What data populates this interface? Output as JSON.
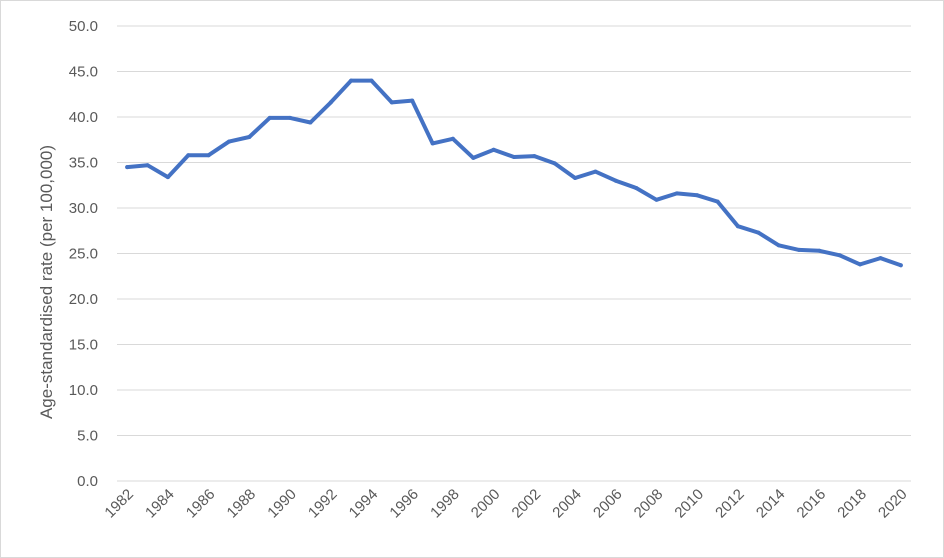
{
  "chart_data": {
    "type": "line",
    "title": "",
    "xlabel": "",
    "ylabel": "Age-standardised rate (per 100,000)",
    "ylim": [
      0,
      50
    ],
    "yticks": [
      "0.0",
      "5.0",
      "10.0",
      "15.0",
      "20.0",
      "25.0",
      "30.0",
      "35.0",
      "40.0",
      "45.0",
      "50.0"
    ],
    "xticks": [
      "1982",
      "1984",
      "1986",
      "1988",
      "1990",
      "1992",
      "1994",
      "1996",
      "1998",
      "2000",
      "2002",
      "2004",
      "2006",
      "2008",
      "2010",
      "2012",
      "2014",
      "2016",
      "2018",
      "2020"
    ],
    "grid": true,
    "legend": "none",
    "line_color": "#4472C4",
    "grid_color": "#d9d9d9",
    "x": [
      1982,
      1983,
      1984,
      1985,
      1986,
      1987,
      1988,
      1989,
      1990,
      1991,
      1992,
      1993,
      1994,
      1995,
      1996,
      1997,
      1998,
      1999,
      2000,
      2001,
      2002,
      2003,
      2004,
      2005,
      2006,
      2007,
      2008,
      2009,
      2010,
      2011,
      2012,
      2013,
      2014,
      2015,
      2016,
      2017,
      2018,
      2019,
      2020
    ],
    "series": [
      {
        "values": [
          34.5,
          34.7,
          33.4,
          35.8,
          35.8,
          37.3,
          37.8,
          39.9,
          39.9,
          39.4,
          41.6,
          44.0,
          44.0,
          41.6,
          41.8,
          37.1,
          37.6,
          35.5,
          36.4,
          35.6,
          35.7,
          34.9,
          33.3,
          34.0,
          33.0,
          32.2,
          30.9,
          31.6,
          31.4,
          30.7,
          28.0,
          27.3,
          25.9,
          25.4,
          25.3,
          24.8,
          23.8,
          24.5,
          23.7
        ]
      }
    ]
  }
}
